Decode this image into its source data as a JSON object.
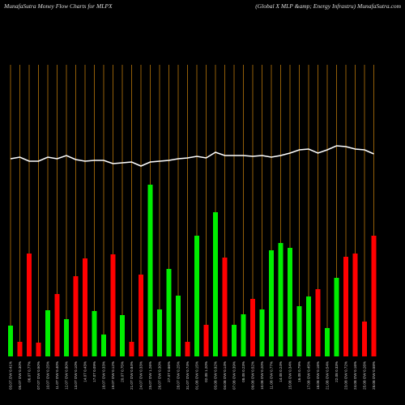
{
  "chart_data": {
    "type": "bar",
    "title": "MunafaSutra  Money Flow  Charts for MLPX",
    "subtitle": "(Global X  MLP &amp; Energy Infrastru) MunafaSutra.com",
    "categories": [
      "03.07.OW 0.41%",
      "05.07 OW 0.30%",
      "06.07 0.77%",
      "07.07 OW 0.50%",
      "10.07 OW 0.25%",
      "11.07 OW 0.40%",
      "12.07 OW 0.80%",
      "13.07 OW 0.10%",
      "14.07 0.43%",
      "17.07 0.09%",
      "18.07 OW 0.33%",
      "19.07 OW 0.12%",
      "20.07 0.75%",
      "21.07 OW 0.84%",
      "24.07 OW 0.33%",
      "25.07 OW 1.26%",
      "26.07 OW 0.30%",
      "27.07 0.66%",
      "28.07 OW 0.25%",
      "31.07 OW 0.74%",
      "01.08 OW 0.15%",
      "02.08 1.20%",
      "03.08 OW 0.92%",
      "04.08 OW 0.14%",
      "07.08 OW 0.39%",
      "08.08 0.23%",
      "09.08 OW 0.52%",
      "10.08 OW 0.20%",
      "11.08 OW 0.77%",
      "14.08 0.24%",
      "15.08 OW 0.34%",
      "16.08 0.79%",
      "17.08 OW 0.45%",
      "18.08 OW 0.16%",
      "21.08 OW 0.54%",
      "22.08 0.33%",
      "23.08 OW 0.72%",
      "24.08 OW 0.16%",
      "25.08 OW 0.26%",
      "28.08 OW 0.58%"
    ],
    "values": [
      38,
      18,
      127,
      17,
      57,
      77,
      46,
      99,
      121,
      56,
      27,
      126,
      51,
      18,
      101,
      212,
      58,
      108,
      75,
      18,
      149,
      39,
      178,
      122,
      39,
      52,
      71,
      58,
      131,
      140,
      134,
      62,
      74,
      83,
      35,
      97,
      123,
      127,
      43,
      149
    ],
    "bar_colors": [
      "#00ee00",
      "#ff0000",
      "#ff0000",
      "#ff0000",
      "#00ee00",
      "#ff0000",
      "#00ee00",
      "#ff0000",
      "#ff0000",
      "#00ee00",
      "#00ee00",
      "#ff0000",
      "#00ee00",
      "#ff0000",
      "#ff0000",
      "#00ee00",
      "#00ee00",
      "#00ee00",
      "#00ee00",
      "#ff0000",
      "#00ee00",
      "#ff0000",
      "#00ee00",
      "#ff0000",
      "#00ee00",
      "#00ee00",
      "#ff0000",
      "#00ee00",
      "#00ee00",
      "#00ee00",
      "#00ee00",
      "#00ee00",
      "#00ee00",
      "#ff0000",
      "#00ee00",
      "#00ee00",
      "#ff0000",
      "#ff0000",
      "#ff0000",
      "#ff0000"
    ],
    "line": {
      "color": "#ffffff",
      "values": [
        244,
        246,
        241,
        241,
        246,
        244,
        248,
        243,
        241,
        242,
        242,
        238,
        239,
        240,
        235,
        240,
        241,
        242,
        244,
        245,
        247,
        245,
        252,
        248,
        248,
        248,
        247,
        248,
        246,
        248,
        251,
        255,
        256,
        251,
        255,
        260,
        259,
        256,
        255,
        250
      ]
    },
    "ylim": [
      0,
      440
    ],
    "gridline_color": "#b8760a"
  }
}
